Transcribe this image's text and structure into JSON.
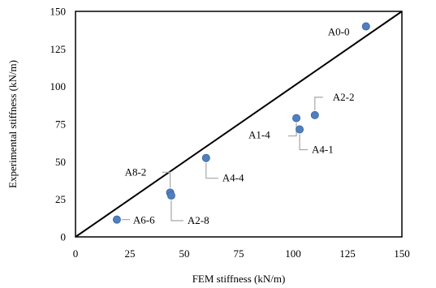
{
  "chart_data": {
    "type": "scatter",
    "title": "",
    "xlabel": "FEM stiffness (kN/m)",
    "ylabel": "Experimental stiffness (kN/m)",
    "xlim": [
      0,
      150
    ],
    "ylim": [
      0,
      150
    ],
    "x_ticks": [
      "0",
      "25",
      "50",
      "75",
      "100",
      "125",
      "150"
    ],
    "y_ticks": [
      "0",
      "25",
      "50",
      "75",
      "100",
      "125",
      "150"
    ],
    "grid": false,
    "legend": "none",
    "reference_line": {
      "from": [
        0,
        0
      ],
      "to": [
        150,
        150
      ]
    },
    "series": [
      {
        "points": [
          {
            "label": "A0-0",
            "x": 133.5,
            "y": 140
          },
          {
            "label": "A2-2",
            "x": 110,
            "y": 81
          },
          {
            "label": "A1-4",
            "x": 101.5,
            "y": 79
          },
          {
            "label": "A4-1",
            "x": 103,
            "y": 71.5
          },
          {
            "label": "A4-4",
            "x": 60,
            "y": 52.5
          },
          {
            "label": "A8-2",
            "x": 43.5,
            "y": 29.5
          },
          {
            "label": "A2-8",
            "x": 44,
            "y": 27.5
          },
          {
            "label": "A6-6",
            "x": 19,
            "y": 11.5
          }
        ]
      }
    ],
    "colors": {
      "marker": "#4f7fc0",
      "marker_edge": "#3b66a3",
      "axis": "#000000",
      "leader": "#a6a6a6"
    }
  }
}
